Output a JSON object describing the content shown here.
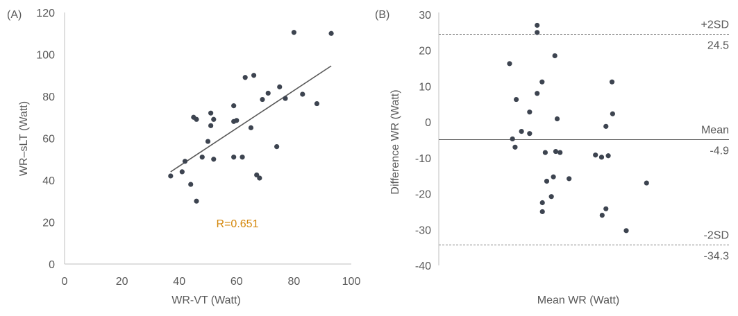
{
  "colors": {
    "axis": "#bfbfbf",
    "text": "#595959",
    "point": "#3d4450",
    "line": "#595959",
    "r_label": "#d4870b"
  },
  "chart_data": [
    {
      "type": "scatter",
      "panel_label": "(A)",
      "xlabel": "WR-VT (Watt)",
      "ylabel": "WR–sLT (Watt)",
      "xlim": [
        0,
        100
      ],
      "ylim": [
        0,
        120
      ],
      "xticks": [
        "0",
        "20",
        "40",
        "60",
        "80",
        "100"
      ],
      "yticks": [
        "0",
        "20",
        "40",
        "60",
        "80",
        "100",
        "120"
      ],
      "annotation": "R=0.651",
      "trendline": {
        "x": [
          37,
          93
        ],
        "y": [
          44,
          94.5
        ]
      },
      "points": [
        {
          "x": 37,
          "y": 42
        },
        {
          "x": 41,
          "y": 44
        },
        {
          "x": 42,
          "y": 49
        },
        {
          "x": 44,
          "y": 38
        },
        {
          "x": 45,
          "y": 70
        },
        {
          "x": 46,
          "y": 69
        },
        {
          "x": 46,
          "y": 30
        },
        {
          "x": 48,
          "y": 51
        },
        {
          "x": 50,
          "y": 58.5
        },
        {
          "x": 51,
          "y": 66
        },
        {
          "x": 51,
          "y": 72
        },
        {
          "x": 52,
          "y": 69
        },
        {
          "x": 52,
          "y": 50
        },
        {
          "x": 59,
          "y": 51
        },
        {
          "x": 59,
          "y": 68
        },
        {
          "x": 60,
          "y": 68.5
        },
        {
          "x": 59,
          "y": 75.5
        },
        {
          "x": 62,
          "y": 51
        },
        {
          "x": 63,
          "y": 89
        },
        {
          "x": 65,
          "y": 65
        },
        {
          "x": 66,
          "y": 90
        },
        {
          "x": 67,
          "y": 42.5
        },
        {
          "x": 68,
          "y": 41
        },
        {
          "x": 69,
          "y": 78.5
        },
        {
          "x": 71,
          "y": 81.5
        },
        {
          "x": 74,
          "y": 56
        },
        {
          "x": 75,
          "y": 84.5
        },
        {
          "x": 77,
          "y": 79
        },
        {
          "x": 80,
          "y": 110.5
        },
        {
          "x": 83,
          "y": 81
        },
        {
          "x": 88,
          "y": 76.5
        },
        {
          "x": 93,
          "y": 110
        }
      ]
    },
    {
      "type": "scatter",
      "panel_label": "(B)",
      "xlabel": "Mean WR (Watt)",
      "ylabel": "Difference WR (Watt)",
      "xlim": [
        0,
        1
      ],
      "ylim": [
        -40,
        30
      ],
      "yticks": [
        "30",
        "20",
        "10",
        "0",
        "-10",
        "-20",
        "-30",
        "-40"
      ],
      "reference_lines": [
        {
          "label": "+2SD",
          "value_label": "24.5",
          "y": 24.5,
          "style": "dashed"
        },
        {
          "label": "Mean",
          "value_label": "-4.9",
          "y": -4.9,
          "style": "solid"
        },
        {
          "label": "-2SD",
          "value_label": "-34.3",
          "y": -34.3,
          "style": "dashed"
        }
      ],
      "points": [
        {
          "x": 0.244,
          "y": 16.3
        },
        {
          "x": 0.339,
          "y": 27
        },
        {
          "x": 0.339,
          "y": 25
        },
        {
          "x": 0.339,
          "y": 8
        },
        {
          "x": 0.356,
          "y": 11.2
        },
        {
          "x": 0.4,
          "y": 18.5
        },
        {
          "x": 0.267,
          "y": 6.3
        },
        {
          "x": 0.313,
          "y": 2.8
        },
        {
          "x": 0.408,
          "y": 0.9
        },
        {
          "x": 0.285,
          "y": -2.6
        },
        {
          "x": 0.313,
          "y": -3.2
        },
        {
          "x": 0.254,
          "y": -4.7
        },
        {
          "x": 0.263,
          "y": -7
        },
        {
          "x": 0.367,
          "y": -8.5
        },
        {
          "x": 0.403,
          "y": -8.2
        },
        {
          "x": 0.418,
          "y": -8.5
        },
        {
          "x": 0.449,
          "y": -15.8
        },
        {
          "x": 0.395,
          "y": -15.3
        },
        {
          "x": 0.372,
          "y": -16.5
        },
        {
          "x": 0.388,
          "y": -20.8
        },
        {
          "x": 0.357,
          "y": -22.5
        },
        {
          "x": 0.357,
          "y": -25
        },
        {
          "x": 0.54,
          "y": -9.2
        },
        {
          "x": 0.561,
          "y": -9.8
        },
        {
          "x": 0.584,
          "y": -9.4
        },
        {
          "x": 0.576,
          "y": -1.2
        },
        {
          "x": 0.599,
          "y": 2.3
        },
        {
          "x": 0.597,
          "y": 11.2
        },
        {
          "x": 0.563,
          "y": -26
        },
        {
          "x": 0.576,
          "y": -24.2
        },
        {
          "x": 0.646,
          "y": -30.3
        },
        {
          "x": 0.716,
          "y": -17
        }
      ]
    }
  ]
}
